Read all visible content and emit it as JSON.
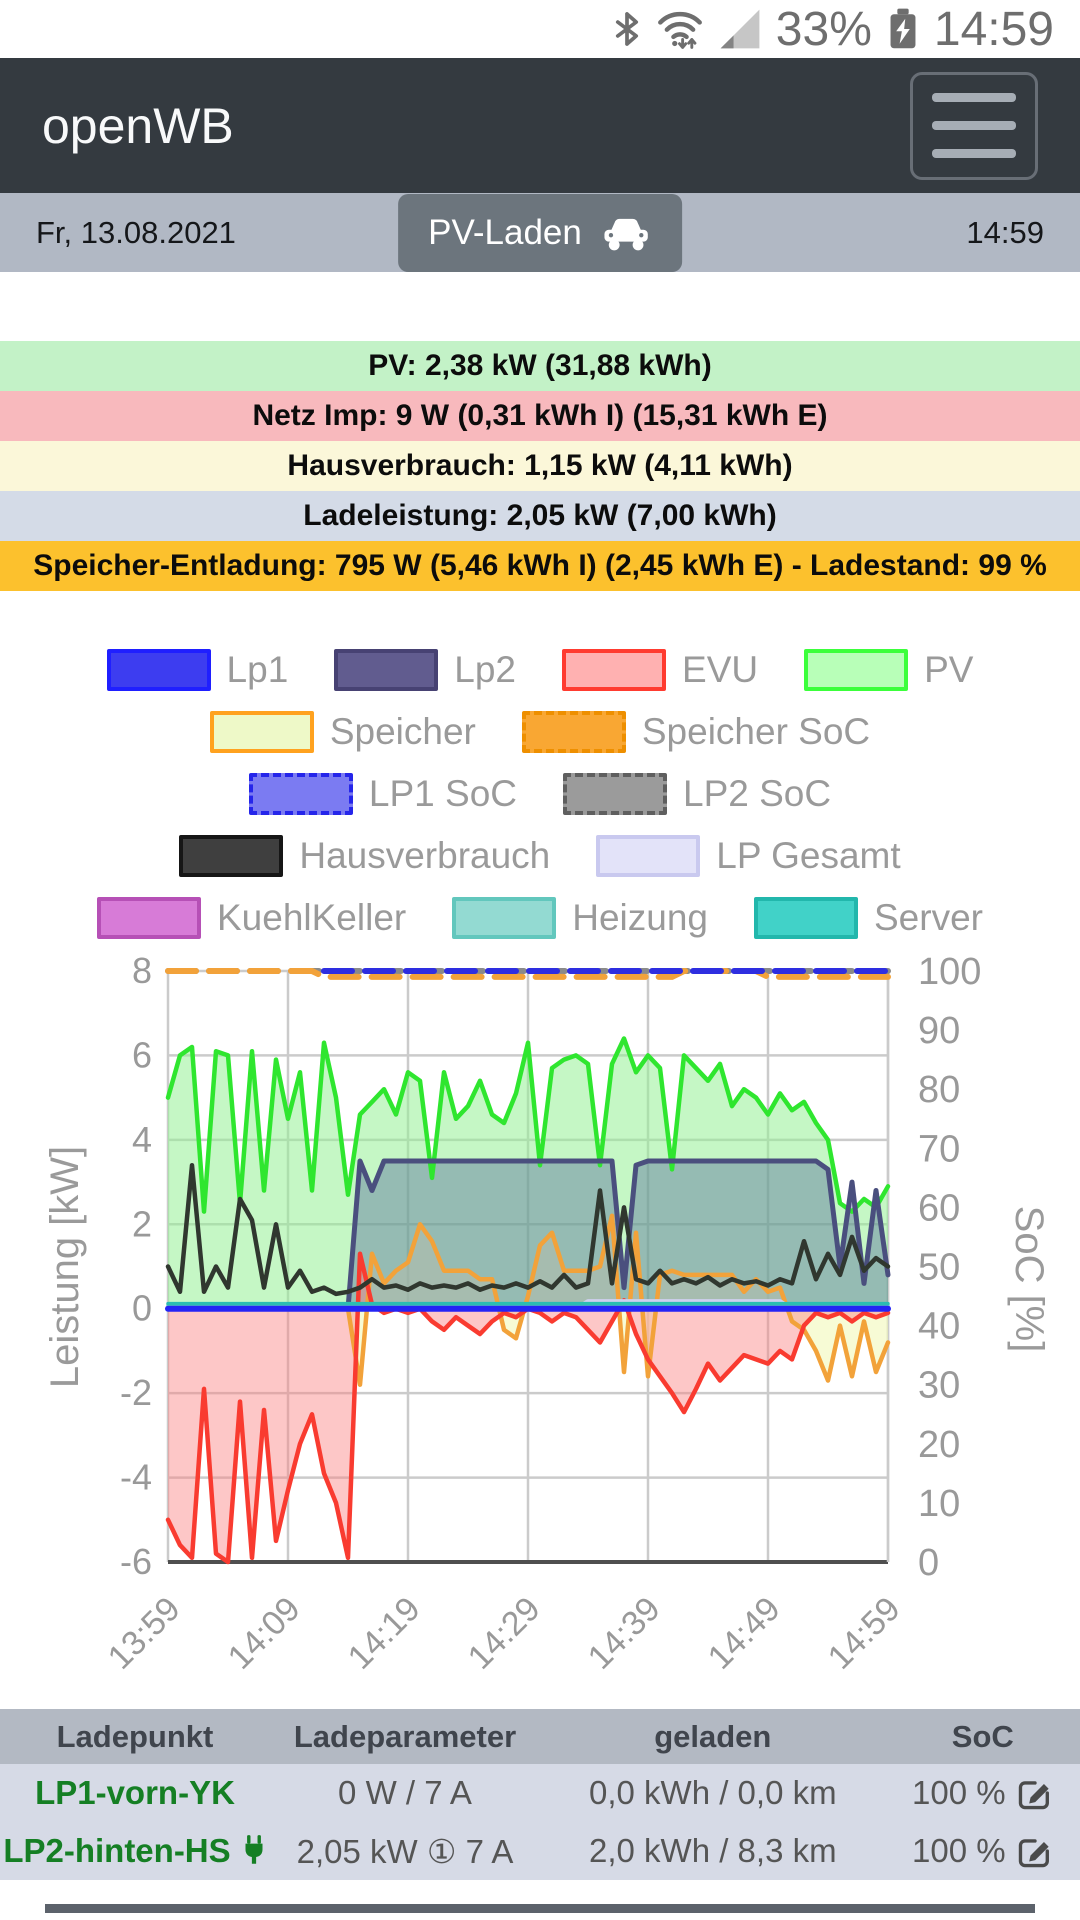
{
  "status_bar": {
    "battery_percent": "33%",
    "clock": "14:59"
  },
  "header": {
    "app_title": "openWB"
  },
  "subheader": {
    "date": "Fr, 13.08.2021",
    "clock": "14:59",
    "mode_button_label": "PV-Laden"
  },
  "banners": [
    {
      "id": "pv",
      "text": "PV: 2,38 kW (31,88 kWh)",
      "bg": "#c3f2c7"
    },
    {
      "id": "netz",
      "text": "Netz Imp: 9 W (0,31 kWh I) (15,31 kWh E)",
      "bg": "#f8b9bd"
    },
    {
      "id": "hausverbrauch",
      "text": "Hausverbrauch: 1,15 kW (4,11 kWh)",
      "bg": "#fbf7d9"
    },
    {
      "id": "ladeleistung",
      "text": "Ladeleistung: 2,05 kW (7,00 kWh)",
      "bg": "#d4dbe7"
    },
    {
      "id": "speicher",
      "text": "Speicher-Entladung: 795 W (5,46 kWh I) (2,45 kWh E) - Ladestand: 99 %",
      "bg": "#fcc12d"
    }
  ],
  "legend": {
    "rows": [
      [
        {
          "label": "Lp1",
          "fill": "#3d3df0",
          "border": "#1f1fff",
          "dashed": false
        },
        {
          "label": "Lp2",
          "fill": "#615c8f",
          "border": "#474273",
          "dashed": false
        },
        {
          "label": "EVU",
          "fill": "#ffb1b1",
          "border": "#ff3b30",
          "dashed": false
        },
        {
          "label": "PV",
          "fill": "#b8ffb8",
          "border": "#3bff3b",
          "dashed": false
        }
      ],
      [
        {
          "label": "Speicher",
          "fill": "#eef9c8",
          "border": "#ffa21f",
          "dashed": false
        },
        {
          "label": "Speicher SoC",
          "fill": "#f9a733",
          "border": "#ee8f00",
          "dashed": true
        }
      ],
      [
        {
          "label": "LP1 SoC",
          "fill": "#7b7bf2",
          "border": "#2525ea",
          "dashed": true
        },
        {
          "label": "LP2 SoC",
          "fill": "#9b9b9b",
          "border": "#5f5f5f",
          "dashed": true
        }
      ],
      [
        {
          "label": "Hausverbrauch",
          "fill": "#3f3f3f",
          "border": "#161616",
          "dashed": false
        },
        {
          "label": "LP Gesamt",
          "fill": "#e3e3f9",
          "border": "#c9c9ef",
          "dashed": false
        }
      ],
      [
        {
          "label": "KuehlKeller",
          "fill": "#d77bd7",
          "border": "#b650b6",
          "dashed": false
        },
        {
          "label": "Heizung",
          "fill": "#93dad2",
          "border": "#62c7bd",
          "dashed": false
        },
        {
          "label": "Server",
          "fill": "#41d2c8",
          "border": "#22b7ac",
          "dashed": false
        }
      ]
    ]
  },
  "chart_data": {
    "type": "line",
    "title": "",
    "xlabel": "",
    "ylabel_left": "Leistung [kW]",
    "ylabel_right": "SoC [%]",
    "ylim_left": [
      -6,
      8
    ],
    "ylim_right": [
      0,
      100
    ],
    "yticks_left": [
      8,
      6,
      4,
      2,
      0,
      -2,
      -4,
      -6
    ],
    "yticks_right": [
      100,
      90,
      80,
      70,
      60,
      50,
      40,
      30,
      20,
      10,
      0
    ],
    "x_tick_labels": [
      "13:59",
      "14:09",
      "14:19",
      "14:29",
      "14:39",
      "14:49",
      "14:59"
    ],
    "x_step_minutes": 1,
    "grid": true,
    "series": [
      {
        "name": "PV",
        "axis": "power",
        "color": "#2fe62f",
        "fill": "rgba(150,240,150,0.55)",
        "values": [
          5.0,
          6.0,
          6.2,
          2.3,
          6.1,
          6.0,
          2.5,
          6.1,
          2.8,
          5.9,
          4.5,
          5.6,
          2.8,
          6.3,
          5.0,
          2.7,
          4.6,
          4.9,
          5.2,
          4.6,
          5.6,
          5.4,
          3.1,
          5.6,
          4.5,
          4.8,
          5.4,
          4.6,
          4.4,
          5.1,
          6.3,
          3.4,
          5.7,
          5.9,
          6.0,
          5.8,
          3.4,
          5.8,
          6.4,
          5.6,
          6.0,
          5.7,
          3.3,
          6.0,
          5.7,
          5.4,
          5.8,
          4.8,
          5.2,
          5.0,
          4.6,
          5.1,
          4.7,
          4.9,
          4.4,
          4.0,
          2.5,
          2.3,
          2.6,
          2.4,
          2.9
        ]
      },
      {
        "name": "Speicher",
        "axis": "power",
        "color": "#f2a23a",
        "fill": "rgba(242,248,185,0.6)",
        "values": [
          0,
          0,
          0,
          0,
          0,
          0,
          0,
          0,
          0,
          0,
          0,
          0,
          0,
          0,
          0,
          0,
          -1.8,
          1.3,
          0.6,
          0.9,
          1.1,
          2.0,
          1.6,
          0.9,
          0.9,
          0.9,
          0.7,
          0.7,
          -0.5,
          -0.7,
          0.3,
          1.5,
          1.8,
          0.9,
          0.9,
          0.9,
          1.0,
          2.2,
          -1.5,
          1.8,
          -1.6,
          0.8,
          0.9,
          0.8,
          0.8,
          0.8,
          0.8,
          0.8,
          0.4,
          0.7,
          0.4,
          0.5,
          -0.3,
          -0.5,
          -1.0,
          -1.7,
          -0.4,
          -1.6,
          -0.3,
          -1.5,
          -0.8
        ]
      },
      {
        "name": "Lp2",
        "axis": "power",
        "color": "#4a4f7e",
        "fill": "rgba(70,90,150,0.38)",
        "values": [
          0,
          0,
          0,
          0,
          0,
          0,
          0,
          0,
          0,
          0,
          0,
          0,
          0,
          0,
          0,
          0,
          3.5,
          2.8,
          3.5,
          3.5,
          3.5,
          3.5,
          3.5,
          3.5,
          3.5,
          3.5,
          3.5,
          3.5,
          3.5,
          3.5,
          3.5,
          3.5,
          3.5,
          3.5,
          3.5,
          3.5,
          3.5,
          3.5,
          0.5,
          3.4,
          3.5,
          3.5,
          3.5,
          3.5,
          3.5,
          3.5,
          3.5,
          3.5,
          3.5,
          3.5,
          3.5,
          3.5,
          3.5,
          3.5,
          3.5,
          3.3,
          1.0,
          3.0,
          0.6,
          2.8,
          0.8
        ]
      },
      {
        "name": "EVU",
        "axis": "power",
        "color": "#f93b30",
        "fill": "rgba(250,130,130,0.45)",
        "values": [
          -5.0,
          -5.6,
          -5.9,
          -1.9,
          -5.8,
          -6.0,
          -2.2,
          -5.9,
          -2.4,
          -5.5,
          -4.3,
          -3.2,
          -2.5,
          -3.9,
          -4.6,
          -5.9,
          1.3,
          0.1,
          -0.1,
          0.0,
          -0.1,
          0.0,
          -0.3,
          -0.5,
          -0.2,
          -0.4,
          -0.6,
          -0.3,
          -0.1,
          -0.2,
          0.0,
          -0.1,
          -0.3,
          -0.1,
          -0.2,
          -0.5,
          -0.8,
          -0.3,
          0.2,
          -0.6,
          -1.2,
          -1.6,
          -2.0,
          -2.45,
          -1.9,
          -1.3,
          -1.7,
          -1.4,
          -1.1,
          -1.2,
          -1.3,
          -1.0,
          -1.2,
          -0.4,
          -0.1,
          -0.2,
          -0.1,
          -0.3,
          -0.1,
          -0.2,
          -0.1
        ]
      },
      {
        "name": "Hausverbrauch",
        "axis": "power",
        "color": "#30372f",
        "values": [
          1.0,
          0.4,
          3.4,
          0.4,
          1.0,
          0.5,
          2.6,
          2.1,
          0.5,
          2.0,
          0.5,
          0.9,
          0.4,
          0.5,
          0.35,
          0.4,
          0.5,
          0.7,
          0.5,
          0.55,
          0.45,
          0.6,
          0.5,
          0.55,
          0.5,
          0.6,
          0.45,
          0.55,
          0.5,
          0.6,
          0.5,
          0.65,
          0.5,
          0.8,
          0.5,
          0.6,
          2.8,
          0.6,
          2.4,
          0.7,
          0.6,
          0.9,
          0.6,
          0.7,
          0.6,
          0.75,
          0.55,
          0.7,
          0.6,
          0.65,
          0.55,
          0.7,
          0.6,
          1.6,
          0.7,
          1.3,
          0.8,
          1.7,
          0.9,
          1.2,
          1.0
        ]
      },
      {
        "name": "LP Gesamt",
        "axis": "power",
        "color": "#cfcfef",
        "values": [
          0,
          0,
          0,
          0,
          0,
          0,
          0,
          0,
          0,
          0,
          0,
          0,
          0,
          0,
          0,
          0,
          0,
          0,
          0,
          0,
          0,
          0,
          0,
          0,
          0,
          0,
          0,
          0,
          0,
          0,
          0,
          0,
          0,
          0,
          0,
          0.18,
          0.18,
          0.18,
          0.18,
          0.18,
          0.18,
          0.18,
          0.18,
          0.18,
          0.18,
          0.18,
          0.18,
          0.18,
          0.18,
          0.18,
          0.18,
          0.18,
          0,
          0,
          0,
          0,
          0,
          0,
          0,
          0,
          0
        ]
      },
      {
        "name": "KuehlKeller",
        "axis": "power",
        "color": "#c468c4",
        "values_const": 0.04
      },
      {
        "name": "Heizung",
        "axis": "power",
        "color": "#74ccc2",
        "values_const": 0.08
      },
      {
        "name": "Server",
        "axis": "power",
        "color": "#2bbdb2",
        "values_const": 0.12
      },
      {
        "name": "Lp1",
        "axis": "power",
        "color": "#2424f5",
        "values_const": 0
      },
      {
        "name": "LP2 SoC",
        "axis": "soc",
        "color": "#8a8a8a",
        "dashed": true,
        "values_const": 100
      },
      {
        "name": "Speicher SoC",
        "axis": "soc",
        "color": "#f2a23a",
        "dashed": true,
        "values": [
          100,
          100,
          100,
          100,
          100,
          100,
          100,
          100,
          100,
          100,
          100,
          100,
          100,
          99,
          99,
          99,
          99,
          99,
          99,
          99,
          99,
          99,
          99,
          99,
          99,
          99,
          99,
          99,
          99,
          99,
          99,
          99,
          99,
          99,
          99,
          99,
          99,
          99,
          99,
          99,
          99,
          99,
          99,
          100,
          100,
          100,
          100,
          100,
          100,
          100,
          99,
          99,
          99,
          99,
          99,
          99,
          99,
          99,
          99,
          99,
          99
        ]
      },
      {
        "name": "LP1 SoC",
        "axis": "soc",
        "color": "#2e2ee0",
        "dashed": true,
        "values": [
          null,
          null,
          null,
          null,
          null,
          null,
          null,
          null,
          null,
          null,
          null,
          null,
          null,
          100,
          100,
          100,
          100,
          100,
          100,
          100,
          100,
          100,
          100,
          100,
          100,
          100,
          100,
          100,
          100,
          100,
          100,
          100,
          100,
          100,
          100,
          100,
          100,
          100,
          100,
          100,
          100,
          100,
          100,
          100,
          100,
          100,
          100,
          100,
          100,
          100,
          100,
          100,
          100,
          100,
          100,
          100,
          100,
          100,
          100,
          100,
          100
        ]
      }
    ]
  },
  "table": {
    "headers": [
      "Ladepunkt",
      "Ladeparameter",
      "geladen",
      "SoC"
    ],
    "name_color": "#157f24",
    "rows": [
      {
        "name": "LP1-vorn-YK",
        "plugged": false,
        "parameter": "0 W / 7 A",
        "charged": "0,0 kWh / 0,0 km",
        "soc": "100 %"
      },
      {
        "name": "LP2-hinten-HS",
        "plugged": true,
        "parameter": "2,05 kW ① 7 A",
        "charged": "2,0 kWh / 8,3 km",
        "soc": "100 %"
      }
    ]
  },
  "divider_color": "#5c626b"
}
